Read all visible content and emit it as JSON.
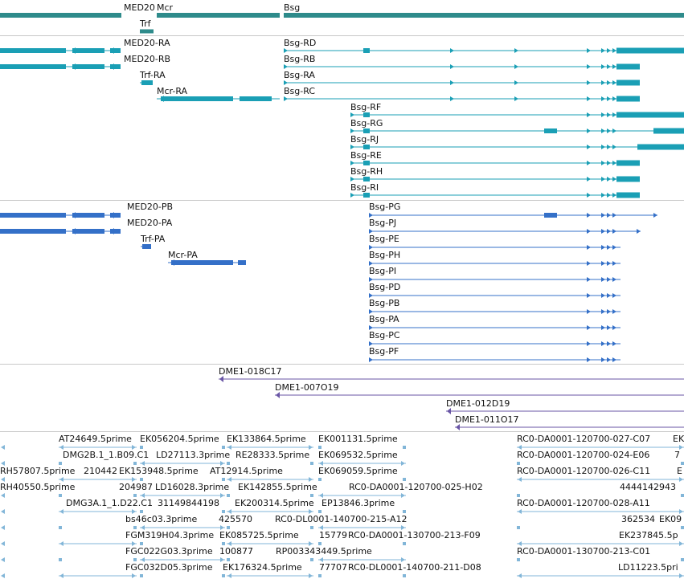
{
  "colors": {
    "gene": "#2e8b8b",
    "transcript": "#1a9fb5",
    "cds": "#3470c8",
    "clone": "#6a56a6",
    "est": "#82b6d8",
    "separator": "#c8c8c8"
  },
  "tracks": {
    "genes": {
      "labels": [
        "MED20",
        "Mcr",
        "Trf",
        "Bsg"
      ]
    },
    "transcripts": {
      "labels": [
        "MED20-RA",
        "MED20-RB",
        "Trf-RA",
        "Mcr-RA",
        "Bsg-RD",
        "Bsg-RB",
        "Bsg-RA",
        "Bsg-RC",
        "Bsg-RF",
        "Bsg-RG",
        "Bsg-RJ",
        "Bsg-RE",
        "Bsg-RH",
        "Bsg-RI"
      ]
    },
    "proteins": {
      "labels": [
        "MED20-PB",
        "MED20-PA",
        "Trf-PA",
        "Mcr-PA",
        "Bsg-PG",
        "Bsg-PJ",
        "Bsg-PE",
        "Bsg-PH",
        "Bsg-PI",
        "Bsg-PD",
        "Bsg-PB",
        "Bsg-PA",
        "Bsg-PC",
        "Bsg-PF"
      ]
    },
    "clones": {
      "labels": [
        "DME1-018C17",
        "DME1-007O19",
        "DME1-012D19",
        "DME1-011O17"
      ]
    },
    "ests": {
      "labels": [
        "AT24649.5prime",
        "EK056204.5prime",
        "EK133864.5prime",
        "EK001131.5prime",
        "RC0-DA0001-120700-027-C07",
        "EK",
        "DMG2B.1_1.B09.C1",
        "LD27113.3prime",
        "RE28333.5prime",
        "EK069532.5prime",
        "RC0-DA0001-120700-024-E06",
        "7",
        "RH57807.5prime",
        "210442",
        "EK153948.5prime",
        "AT12914.5prime",
        "EK069059.5prime",
        "RC0-DA0001-120700-026-C11",
        "E",
        "RH40550.5prime",
        "204987",
        "LD16028.3prime",
        "EK142855.5prime",
        "RC0-DA0001-120700-025-H02",
        "4444142943",
        "DMG3A.1_1.D22.C1",
        "31149844198",
        "EK200314.5prime",
        "EP13846.3prime",
        "RC0-DA0001-120700-028-A11",
        "bs46c03.3prime",
        "425570",
        "RC0-DL0001-140700-215-A12",
        "362534",
        "EK09",
        "FGM319H04.3prime",
        "EK085725.5prime",
        "15779",
        "RC0-DA0001-130700-213-F09",
        "EK237845.5p",
        "FGC022G03.3prime",
        "100877",
        "RP003343449.5prime",
        "RC0-DA0001-130700-213-C01",
        "FGC032D05.3prime",
        "EK176324.5prime",
        "77707",
        "RC0-DL0001-140700-211-D08",
        "LD11223.5pri"
      ]
    }
  }
}
